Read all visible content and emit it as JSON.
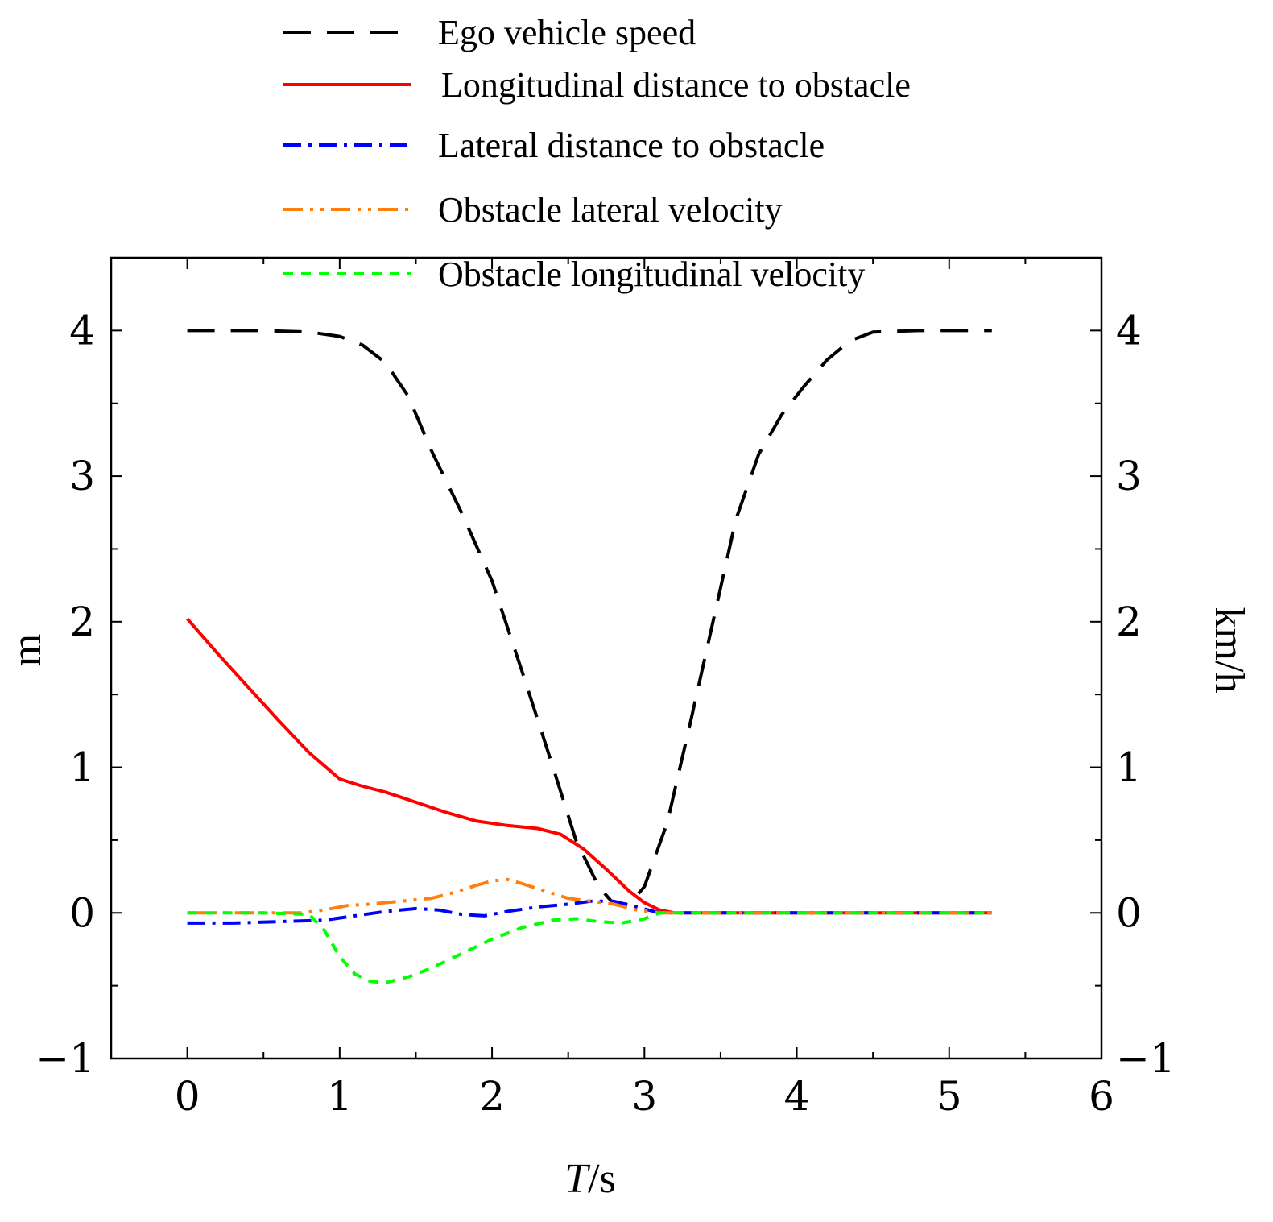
{
  "chart_data": {
    "type": "line",
    "title": "",
    "xlabel_italic": "T",
    "xlabel_rest": "/s",
    "ylabel_left": "m",
    "ylabel_right": "km/h",
    "xlim": [
      -0.5,
      6
    ],
    "ylim": [
      -1,
      4.5
    ],
    "xticks": [
      0,
      1,
      2,
      3,
      4,
      5,
      6
    ],
    "yticks": [
      -1,
      0,
      1,
      2,
      3,
      4
    ],
    "legend_position": "top-center",
    "grid": false,
    "series": [
      {
        "name": "Ego vehicle speed",
        "color": "#000000",
        "style": "dashed",
        "x": [
          0,
          0.5,
          0.8,
          1.0,
          1.15,
          1.3,
          1.45,
          1.6,
          1.8,
          2.0,
          2.2,
          2.4,
          2.55,
          2.7,
          2.8,
          2.9,
          3.0,
          3.15,
          3.3,
          3.45,
          3.6,
          3.75,
          3.9,
          4.05,
          4.2,
          4.35,
          4.5,
          4.8,
          5.28
        ],
        "y": [
          4,
          4,
          3.99,
          3.96,
          3.9,
          3.78,
          3.55,
          3.18,
          2.75,
          2.28,
          1.65,
          1.0,
          0.5,
          0.18,
          0.06,
          0.06,
          0.18,
          0.62,
          1.3,
          2.0,
          2.7,
          3.15,
          3.42,
          3.62,
          3.8,
          3.93,
          3.99,
          4,
          4
        ]
      },
      {
        "name": "Longitudinal distance to obstacle",
        "color": "#ff0000",
        "style": "solid",
        "x": [
          0,
          0.2,
          0.4,
          0.6,
          0.8,
          1.0,
          1.15,
          1.3,
          1.5,
          1.7,
          1.9,
          2.1,
          2.3,
          2.45,
          2.6,
          2.75,
          2.9,
          3.0,
          3.1,
          3.2,
          3.5,
          4.0,
          4.5,
          5.0,
          5.28
        ],
        "y": [
          2.02,
          1.78,
          1.55,
          1.32,
          1.1,
          0.92,
          0.87,
          0.83,
          0.76,
          0.69,
          0.63,
          0.6,
          0.58,
          0.54,
          0.44,
          0.3,
          0.15,
          0.07,
          0.02,
          0,
          0,
          0,
          0,
          0,
          0
        ]
      },
      {
        "name": "Lateral distance to obstacle",
        "color": "#0000ff",
        "style": "dash-dot",
        "x": [
          0,
          0.3,
          0.6,
          0.9,
          1.1,
          1.3,
          1.5,
          1.65,
          1.8,
          1.95,
          2.1,
          2.3,
          2.5,
          2.65,
          2.8,
          2.95,
          3.1,
          3.5,
          4.0,
          4.5,
          5.0,
          5.28
        ],
        "y": [
          -0.07,
          -0.07,
          -0.06,
          -0.05,
          -0.02,
          0.01,
          0.03,
          0.02,
          -0.01,
          -0.02,
          0.01,
          0.04,
          0.06,
          0.08,
          0.08,
          0.04,
          0,
          0,
          0,
          0,
          0,
          0
        ]
      },
      {
        "name": "Obstacle lateral velocity",
        "color": "#ff7f0e",
        "style": "dash-dot-dot",
        "x": [
          0,
          0.5,
          0.75,
          0.9,
          1.05,
          1.2,
          1.4,
          1.6,
          1.75,
          1.9,
          2.0,
          2.1,
          2.2,
          2.35,
          2.5,
          2.65,
          2.8,
          2.95,
          3.1,
          3.5,
          4.0,
          4.5,
          5.0,
          5.28
        ],
        "y": [
          0,
          0,
          0,
          0.02,
          0.05,
          0.06,
          0.08,
          0.1,
          0.14,
          0.19,
          0.22,
          0.23,
          0.2,
          0.15,
          0.1,
          0.08,
          0.06,
          0.02,
          0,
          0,
          0,
          0,
          0,
          0
        ]
      },
      {
        "name": "Obstacle longitudinal velocity",
        "color": "#00ff00",
        "style": "dotted",
        "x": [
          0,
          0.5,
          0.8,
          0.9,
          1.0,
          1.1,
          1.2,
          1.3,
          1.45,
          1.6,
          1.8,
          2.0,
          2.2,
          2.4,
          2.55,
          2.7,
          2.85,
          3.0,
          3.1,
          3.5,
          4.0,
          4.5,
          5.0,
          5.28
        ],
        "y": [
          0,
          0,
          -0.01,
          -0.12,
          -0.3,
          -0.42,
          -0.47,
          -0.48,
          -0.44,
          -0.38,
          -0.28,
          -0.18,
          -0.1,
          -0.05,
          -0.04,
          -0.06,
          -0.07,
          -0.04,
          0,
          0,
          0,
          0,
          0,
          0
        ]
      }
    ]
  }
}
